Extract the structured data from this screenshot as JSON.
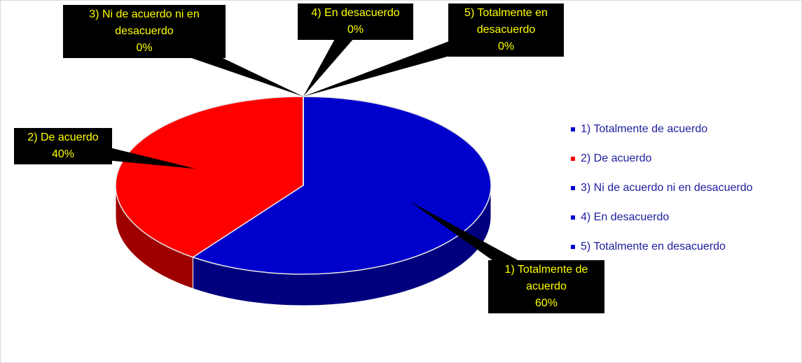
{
  "chart_data": {
    "type": "pie",
    "categories": [
      "1) Totalmente de acuerdo",
      "2) De acuerdo",
      "3) Ni de acuerdo ni en desacuerdo",
      "4) En desacuerdo",
      "5) Totalmente en desacuerdo"
    ],
    "values": [
      60,
      40,
      0,
      0,
      0
    ],
    "value_labels": [
      "60%",
      "40%",
      "0%",
      "0%",
      "0%"
    ],
    "colors": [
      "#0000cc",
      "#ff0000",
      "#0000cc",
      "#0000cc",
      "#0000cc"
    ],
    "legend": "right"
  }
}
